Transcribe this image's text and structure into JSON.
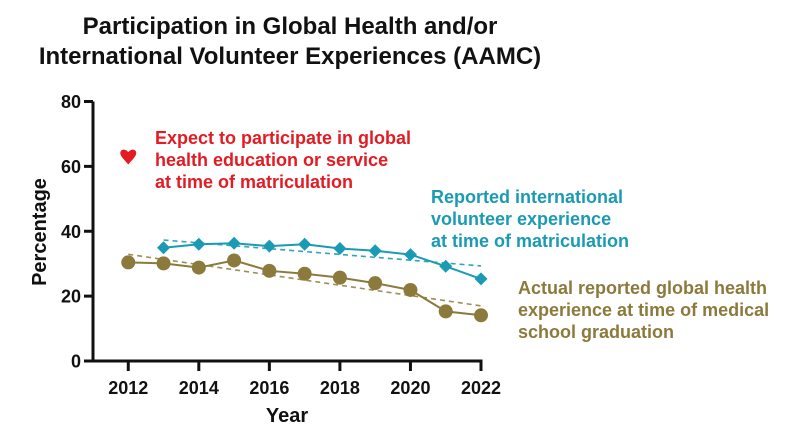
{
  "chart_data": {
    "type": "line",
    "title": "Participation in Global Health and/or International Volunteer Experiences (AAMC)",
    "title_lines": [
      "Participation in Global Health and/or",
      "International Volunteer Experiences (AAMC)"
    ],
    "xlabel": "Year",
    "ylabel": "Percentage",
    "xlim": [
      2011,
      2022
    ],
    "ylim": [
      0,
      80
    ],
    "xticks": [
      2012,
      2014,
      2016,
      2018,
      2020,
      2022
    ],
    "yticks": [
      0,
      20,
      40,
      60,
      80
    ],
    "grid": false,
    "legend": "none (inline annotations)",
    "series": [
      {
        "name": "Expect to participate in global health education or service at time of matriculation",
        "label_lines": [
          "Expect to participate in global",
          "health education or service",
          "at time of matriculation"
        ],
        "color": "#e31b23",
        "marker": "heart",
        "x": [
          2012
        ],
        "y": [
          63
        ]
      },
      {
        "name": "Reported international volunteer experience at time of matriculation",
        "label_lines": [
          "Reported international",
          "volunteer experience",
          "at time of matriculation"
        ],
        "color": "#1a9bb3",
        "marker": "diamond",
        "x": [
          2013,
          2014,
          2015,
          2016,
          2017,
          2018,
          2019,
          2020,
          2021,
          2022
        ],
        "y": [
          34.9,
          36.0,
          36.3,
          35.4,
          36.0,
          34.7,
          34.0,
          32.8,
          29.2,
          25.3
        ],
        "trend": {
          "x": [
            2013,
            2022
          ],
          "y": [
            37.3,
            29.3
          ]
        }
      },
      {
        "name": "Actual reported global health experience at time of medical school graduation",
        "label_lines": [
          "Actual reported global health",
          "experience at time of medical",
          "school graduation"
        ],
        "color": "#8c7a3c",
        "marker": "circle",
        "x": [
          2012,
          2013,
          2014,
          2015,
          2016,
          2017,
          2018,
          2019,
          2020,
          2021,
          2022
        ],
        "y": [
          30.4,
          30.1,
          28.8,
          31.0,
          27.8,
          26.9,
          25.7,
          24.0,
          21.9,
          15.3,
          14.1
        ],
        "trend": {
          "x": [
            2012,
            2022
          ],
          "y": [
            32.9,
            17.0
          ]
        }
      }
    ]
  }
}
